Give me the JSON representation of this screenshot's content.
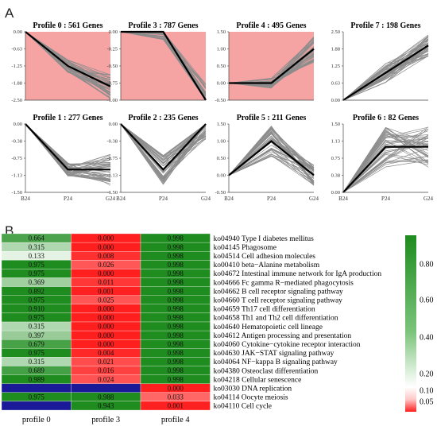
{
  "figure": {
    "label_a": "A",
    "label_b": "B"
  },
  "chart_data": [
    {
      "type": "line",
      "section": "A",
      "x_categories": [
        "B24",
        "P24",
        "G24"
      ],
      "panels": [
        {
          "title": "Profile 0 : 561 Genes",
          "significant": true,
          "yticks": [
            "0.00",
            "-0.63",
            "-1.25",
            "-1.88",
            "-2.50"
          ],
          "ylim": [
            -2.5,
            0
          ],
          "centroid": [
            0,
            -1.25,
            -2.0
          ],
          "spread": [
            0,
            0.25,
            0.45
          ]
        },
        {
          "title": "Profile 3 : 787 Genes",
          "significant": true,
          "yticks": [
            "0.00",
            "-0.25",
            "-0.50",
            "-0.75",
            "-1.00"
          ],
          "ylim": [
            -1,
            0
          ],
          "centroid": [
            0,
            0,
            -1.0
          ],
          "spread": [
            0,
            0.12,
            0.25
          ]
        },
        {
          "title": "Profile 4 : 495 Genes",
          "significant": true,
          "yticks": [
            "1.50",
            "1.00",
            "0.50",
            "0.00",
            "-0.50"
          ],
          "ylim": [
            -0.5,
            1.5
          ],
          "centroid": [
            0,
            0,
            1.0
          ],
          "spread": [
            0,
            0.15,
            0.4
          ]
        },
        {
          "title": "Profile 7 : 198 Genes",
          "significant": false,
          "yticks": [
            "2.50",
            "1.88",
            "1.25",
            "0.63",
            "0.00"
          ],
          "ylim": [
            0,
            2.5
          ],
          "centroid": [
            0,
            1.0,
            2.0
          ],
          "spread": [
            0,
            0.35,
            0.4
          ]
        },
        {
          "title": "Profile 1 : 277 Genes",
          "significant": false,
          "yticks": [
            "0.00",
            "-0.38",
            "-0.75",
            "-1.13",
            "-1.50"
          ],
          "ylim": [
            -1.5,
            0
          ],
          "centroid": [
            0,
            -1.0,
            -1.0
          ],
          "spread": [
            0,
            0.15,
            0.35
          ]
        },
        {
          "title": "Profile 2 : 235 Genes",
          "significant": false,
          "yticks": [
            "0.00",
            "-0.38",
            "-0.75",
            "-1.13",
            "-1.50"
          ],
          "ylim": [
            -1.5,
            0
          ],
          "centroid": [
            0,
            -1.0,
            0
          ],
          "spread": [
            0,
            0.35,
            0.35
          ]
        },
        {
          "title": "Profile 5 : 211 Genes",
          "significant": false,
          "yticks": [
            "1.50",
            "1.00",
            "0.50",
            "0.00",
            "-0.50"
          ],
          "ylim": [
            -0.5,
            1.5
          ],
          "centroid": [
            0,
            1.0,
            0
          ],
          "spread": [
            0,
            0.45,
            0.3
          ]
        },
        {
          "title": "Profile 6 : 82 Genes",
          "significant": false,
          "yticks": [
            "1.50",
            "1.13",
            "0.75",
            "0.38",
            "0.00"
          ],
          "ylim": [
            0,
            1.5
          ],
          "centroid": [
            0,
            1.0,
            1.0
          ],
          "spread": [
            0,
            0.45,
            0.45
          ]
        }
      ]
    },
    {
      "type": "heatmap",
      "section": "B",
      "columns": [
        "profile 0",
        "profile 3",
        "profile 4"
      ],
      "rows": [
        {
          "term": "ko04940 Type I diabetes mellitus",
          "values": [
            0.664,
            0.0,
            0.998
          ]
        },
        {
          "term": "ko04145 Phagosome",
          "values": [
            0.315,
            0.0,
            0.998
          ]
        },
        {
          "term": "ko04514 Cell adhesion molecules",
          "values": [
            0.133,
            0.008,
            0.998
          ]
        },
        {
          "term": "ko00410 beta−Alanine metabolism",
          "values": [
            0.975,
            0.026,
            0.998
          ]
        },
        {
          "term": "ko04672 Intestinal immune network for IgA production",
          "values": [
            0.975,
            0.0,
            0.998
          ]
        },
        {
          "term": "ko04666 Fc gamma R−mediated phagocytosis",
          "values": [
            0.369,
            0.011,
            0.998
          ]
        },
        {
          "term": "ko04662 B cell receptor signaling pathway",
          "values": [
            0.892,
            0.001,
            0.998
          ]
        },
        {
          "term": "ko04660 T cell receptor signaling pathway",
          "values": [
            0.975,
            0.025,
            0.998
          ]
        },
        {
          "term": "ko04659 Th17 cell differentiation",
          "values": [
            0.91,
            0.0,
            0.998
          ]
        },
        {
          "term": "ko04658 Th1 and Th2 cell differentiation",
          "values": [
            0.975,
            0.0,
            0.998
          ]
        },
        {
          "term": "ko04640 Hematopoietic cell lineage",
          "values": [
            0.315,
            0.0,
            0.998
          ]
        },
        {
          "term": "ko04612 Antigen processing and presentation",
          "values": [
            0.397,
            0.0,
            0.998
          ]
        },
        {
          "term": "ko04060 Cytokine−cytokine receptor interaction",
          "values": [
            0.679,
            0.0,
            0.998
          ]
        },
        {
          "term": "ko04630 JAK−STAT signaling pathway",
          "values": [
            0.975,
            0.004,
            0.998
          ]
        },
        {
          "term": "ko04064 NF−kappa B signaling pathway",
          "values": [
            0.315,
            0.021,
            0.998
          ]
        },
        {
          "term": "ko04380 Osteoclast differentiation",
          "values": [
            0.689,
            0.016,
            0.998
          ]
        },
        {
          "term": "ko04218 Cellular senescence",
          "values": [
            0.989,
            0.024,
            0.998
          ]
        },
        {
          "term": "ko03030 DNA replication",
          "values": [
            null,
            null,
            0.0
          ]
        },
        {
          "term": "ko04114 Oocyte meiosis",
          "values": [
            0.975,
            0.988,
            0.033
          ]
        },
        {
          "term": "ko04110 Cell cycle",
          "values": [
            null,
            0.943,
            0.001
          ]
        }
      ],
      "colorbar": {
        "ticks": [
          0.8,
          0.6,
          0.4,
          0.2,
          0.1,
          0.05
        ],
        "tick_labels": [
          "0.80",
          "0.60",
          "0.40",
          "0.20",
          "0.10",
          "0.05"
        ]
      },
      "colors": {
        "high": "#1e8c1e",
        "white": "#ffffff",
        "low": "#ff1f1f",
        "na": "#1a1a99"
      }
    }
  ]
}
